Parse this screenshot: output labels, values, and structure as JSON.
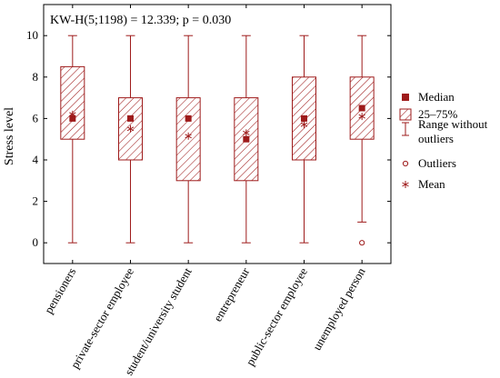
{
  "chart_data": {
    "type": "box",
    "annotation": "KW-H(5;1198) = 12.339; p = 0.030",
    "ylabel": "Stress level",
    "xlabel": "",
    "ylim": [
      -1,
      11.5
    ],
    "yticks": [
      0,
      2,
      4,
      6,
      8,
      10
    ],
    "grid": false,
    "legend_position": "right",
    "color": "#9e1b1b",
    "categories": [
      "pensioners",
      "private-sector employee",
      "student/university student",
      "entrepreneur",
      "public-sector employee",
      "unemployed person"
    ],
    "boxes": [
      {
        "median": 6,
        "q1": 5,
        "q3": 8.5,
        "whisker_low": 0,
        "whisker_high": 10,
        "mean": 6.2,
        "outliers": []
      },
      {
        "median": 6,
        "q1": 4,
        "q3": 7,
        "whisker_low": 0,
        "whisker_high": 10,
        "mean": 5.5,
        "outliers": []
      },
      {
        "median": 6,
        "q1": 3,
        "q3": 7,
        "whisker_low": 0,
        "whisker_high": 10,
        "mean": 5.15,
        "outliers": []
      },
      {
        "median": 5,
        "q1": 3,
        "q3": 7,
        "whisker_low": 0,
        "whisker_high": 10,
        "mean": 5.3,
        "outliers": []
      },
      {
        "median": 6,
        "q1": 4,
        "q3": 8,
        "whisker_low": 0,
        "whisker_high": 10,
        "mean": 5.7,
        "outliers": []
      },
      {
        "median": 6.5,
        "q1": 5,
        "q3": 8,
        "whisker_low": 1,
        "whisker_high": 10,
        "mean": 6.1,
        "outliers": [
          0
        ]
      }
    ],
    "legend": [
      {
        "symbol": "median",
        "label": "Median"
      },
      {
        "symbol": "box",
        "label": "25–75%"
      },
      {
        "symbol": "whisker",
        "label": "Range without outliers"
      },
      {
        "symbol": "outlier",
        "label": "Outliers"
      },
      {
        "symbol": "mean",
        "label": "Mean"
      }
    ]
  }
}
